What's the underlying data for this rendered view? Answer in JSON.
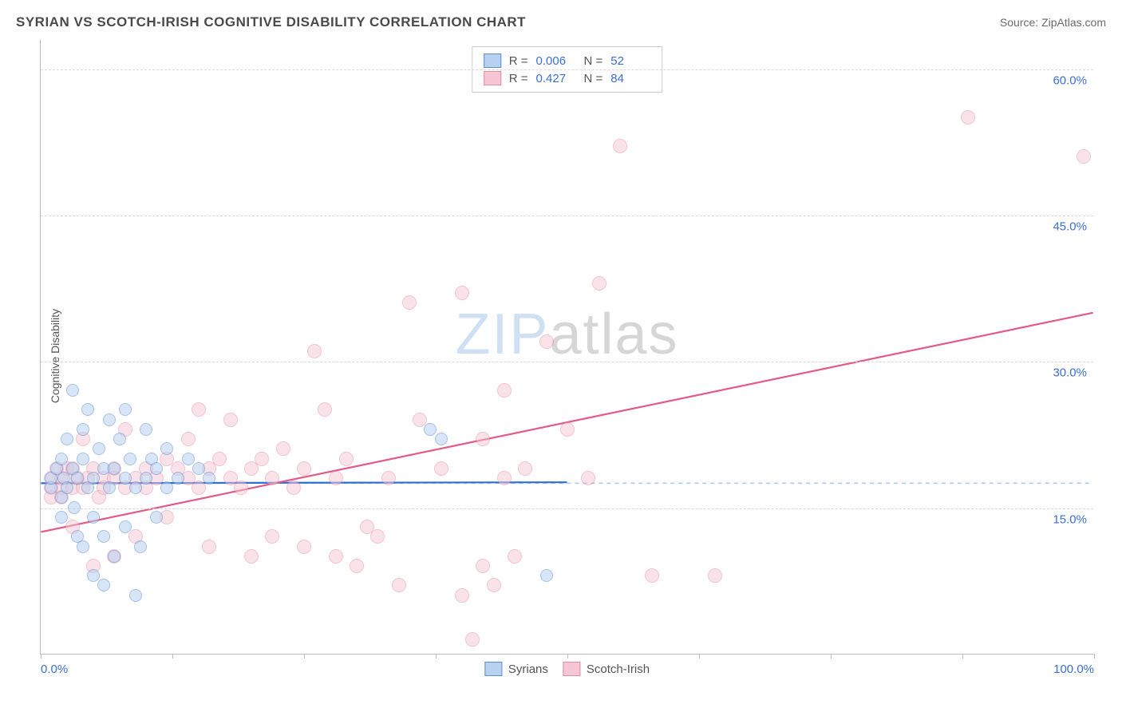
{
  "title": "SYRIAN VS SCOTCH-IRISH COGNITIVE DISABILITY CORRELATION CHART",
  "source_label": "Source: ZipAtlas.com",
  "watermark": {
    "bold": "ZIP",
    "light": "atlas"
  },
  "ylabel": "Cognitive Disability",
  "chart": {
    "type": "scatter",
    "background_color": "#ffffff",
    "grid_color": "#d8d8d8",
    "axis_color": "#bbbbbb",
    "label_color": "#3b6fd6",
    "xlim": [
      0,
      100
    ],
    "ylim": [
      0,
      63
    ],
    "xtick_positions": [
      0,
      12.5,
      25,
      37.5,
      50,
      62.5,
      75,
      87.5,
      100
    ],
    "xtick_labels": {
      "0": "0.0%",
      "100": "100.0%"
    },
    "ytick_positions": [
      15,
      30,
      45,
      60
    ],
    "ytick_labels": {
      "15": "15.0%",
      "30": "30.0%",
      "45": "45.0%",
      "60": "60.0%"
    },
    "reference_line_y": 17.5,
    "reference_line_color": "#a8c5ec",
    "series": [
      {
        "name": "Syrians",
        "fill_color": "#b8d1f0",
        "stroke_color": "#5a8fd6",
        "marker_size": 16,
        "fill_opacity": 0.55,
        "R": "0.006",
        "N": "52",
        "trend": {
          "x1": 0,
          "y1": 17.5,
          "x2": 50,
          "y2": 17.6,
          "color": "#2f6fd0",
          "width": 2.2
        },
        "points": [
          [
            1,
            17
          ],
          [
            1,
            18
          ],
          [
            1.5,
            19
          ],
          [
            2,
            16
          ],
          [
            2,
            20
          ],
          [
            2,
            14
          ],
          [
            2.2,
            18
          ],
          [
            2.5,
            22
          ],
          [
            2.5,
            17
          ],
          [
            3,
            19
          ],
          [
            3,
            27
          ],
          [
            3.2,
            15
          ],
          [
            3.5,
            12
          ],
          [
            3.5,
            18
          ],
          [
            4,
            23
          ],
          [
            4,
            20
          ],
          [
            4,
            11
          ],
          [
            4.5,
            17
          ],
          [
            4.5,
            25
          ],
          [
            5,
            18
          ],
          [
            5,
            8
          ],
          [
            5,
            14
          ],
          [
            5.5,
            21
          ],
          [
            6,
            7
          ],
          [
            6,
            19
          ],
          [
            6,
            12
          ],
          [
            6.5,
            17
          ],
          [
            6.5,
            24
          ],
          [
            7,
            10
          ],
          [
            7,
            19
          ],
          [
            7.5,
            22
          ],
          [
            8,
            18
          ],
          [
            8,
            25
          ],
          [
            8,
            13
          ],
          [
            8.5,
            20
          ],
          [
            9,
            6
          ],
          [
            9,
            17
          ],
          [
            9.5,
            11
          ],
          [
            10,
            23
          ],
          [
            10,
            18
          ],
          [
            10.5,
            20
          ],
          [
            11,
            14
          ],
          [
            11,
            19
          ],
          [
            12,
            21
          ],
          [
            12,
            17
          ],
          [
            13,
            18
          ],
          [
            14,
            20
          ],
          [
            15,
            19
          ],
          [
            16,
            18
          ],
          [
            37,
            23
          ],
          [
            38,
            22
          ],
          [
            48,
            8
          ]
        ]
      },
      {
        "name": "Scotch-Irish",
        "fill_color": "#f6c6d4",
        "stroke_color": "#e48aa5",
        "marker_size": 18,
        "fill_opacity": 0.5,
        "R": "0.427",
        "N": "84",
        "trend": {
          "x1": 0,
          "y1": 12.5,
          "x2": 100,
          "y2": 35,
          "color": "#e25a86",
          "width": 2.2
        },
        "points": [
          [
            1,
            17
          ],
          [
            1,
            18
          ],
          [
            1,
            16
          ],
          [
            1.5,
            19
          ],
          [
            2,
            17
          ],
          [
            2,
            18
          ],
          [
            2,
            16
          ],
          [
            2.5,
            19
          ],
          [
            3,
            17
          ],
          [
            3,
            13
          ],
          [
            3,
            19
          ],
          [
            3.5,
            18
          ],
          [
            4,
            17
          ],
          [
            4,
            22
          ],
          [
            4.5,
            18
          ],
          [
            5,
            9
          ],
          [
            5,
            19
          ],
          [
            5.5,
            16
          ],
          [
            6,
            18
          ],
          [
            6,
            17
          ],
          [
            7,
            10
          ],
          [
            7,
            19
          ],
          [
            7,
            18
          ],
          [
            8,
            23
          ],
          [
            8,
            17
          ],
          [
            9,
            18
          ],
          [
            9,
            12
          ],
          [
            10,
            19
          ],
          [
            10,
            17
          ],
          [
            11,
            18
          ],
          [
            12,
            20
          ],
          [
            12,
            14
          ],
          [
            13,
            19
          ],
          [
            14,
            18
          ],
          [
            14,
            22
          ],
          [
            15,
            25
          ],
          [
            15,
            17
          ],
          [
            16,
            19
          ],
          [
            16,
            11
          ],
          [
            17,
            20
          ],
          [
            18,
            18
          ],
          [
            18,
            24
          ],
          [
            19,
            17
          ],
          [
            20,
            19
          ],
          [
            20,
            10
          ],
          [
            21,
            20
          ],
          [
            22,
            12
          ],
          [
            22,
            18
          ],
          [
            23,
            21
          ],
          [
            24,
            17
          ],
          [
            25,
            11
          ],
          [
            25,
            19
          ],
          [
            26,
            31
          ],
          [
            27,
            25
          ],
          [
            28,
            10
          ],
          [
            28,
            18
          ],
          [
            29,
            20
          ],
          [
            30,
            9
          ],
          [
            31,
            13
          ],
          [
            32,
            12
          ],
          [
            33,
            18
          ],
          [
            34,
            7
          ],
          [
            35,
            36
          ],
          [
            36,
            24
          ],
          [
            38,
            19
          ],
          [
            40,
            37
          ],
          [
            40,
            6
          ],
          [
            41,
            1.5
          ],
          [
            42,
            22
          ],
          [
            42,
            9
          ],
          [
            43,
            7
          ],
          [
            44,
            18
          ],
          [
            44,
            27
          ],
          [
            45,
            10
          ],
          [
            46,
            19
          ],
          [
            48,
            32
          ],
          [
            50,
            23
          ],
          [
            52,
            18
          ],
          [
            53,
            38
          ],
          [
            55,
            52
          ],
          [
            58,
            8
          ],
          [
            64,
            8
          ],
          [
            88,
            55
          ],
          [
            99,
            51
          ]
        ]
      }
    ]
  },
  "legend_bottom": [
    {
      "label": "Syrians",
      "fill": "#b8d1f0",
      "stroke": "#5a8fd6"
    },
    {
      "label": "Scotch-Irish",
      "fill": "#f6c6d4",
      "stroke": "#e48aa5"
    }
  ],
  "legend_top_cols": {
    "r_label": "R =",
    "n_label": "N ="
  }
}
